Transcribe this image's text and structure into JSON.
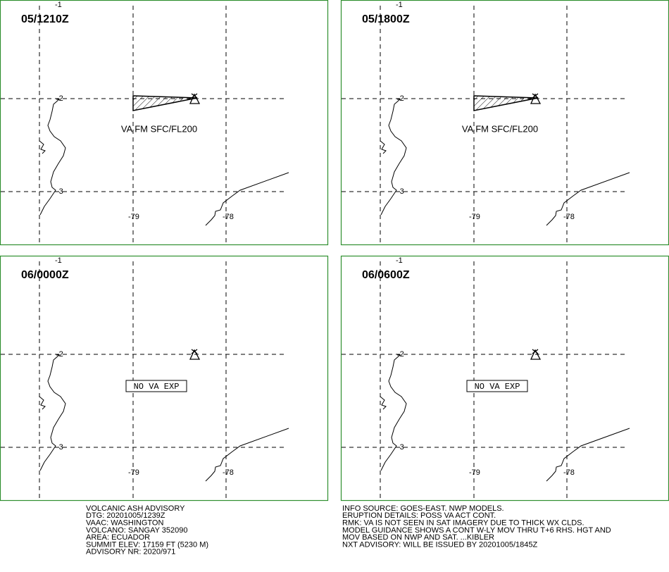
{
  "panels": [
    {
      "time": "05/1210Z",
      "annotation": "VA FM SFC/FL200",
      "ash": true
    },
    {
      "time": "05/1800Z",
      "annotation": "VA FM SFC/FL200",
      "ash": true
    },
    {
      "time": "06/0000Z",
      "annotation": "NO VA EXP",
      "ash": false
    },
    {
      "time": "06/0600Z",
      "annotation": "NO VA EXP",
      "ash": false
    }
  ],
  "lat_labels": [
    "-1",
    "-2",
    "-3"
  ],
  "lon_labels": [
    "-79",
    "-78"
  ],
  "advisory_left": [
    "VOLCANIC ASH ADVISORY",
    "DTG: 20201005/1239Z",
    "VAAC: WASHINGTON",
    "VOLCANO: SANGAY 352090",
    "AREA: ECUADOR",
    "SUMMIT ELEV: 17159 FT (5230 M)",
    "ADVISORY NR: 2020/971"
  ],
  "advisory_right": [
    "INFO SOURCE: GOES-EAST. NWP MODELS.",
    "ERUPTION DETAILS: POSS VA ACT CONT.",
    "RMK: VA IS NOT SEEN IN SAT IMAGERY DUE TO THICK WX CLDS.",
    "MODEL GUIDANCE SHOWS A CONT W-LY MOV THRU T+6 RHS. HGT AND",
    "MOV BASED ON NWP AND SAT. ...KIBLER",
    "NXT ADVISORY: WILL BE ISSUED BY 20201005/1845Z"
  ]
}
